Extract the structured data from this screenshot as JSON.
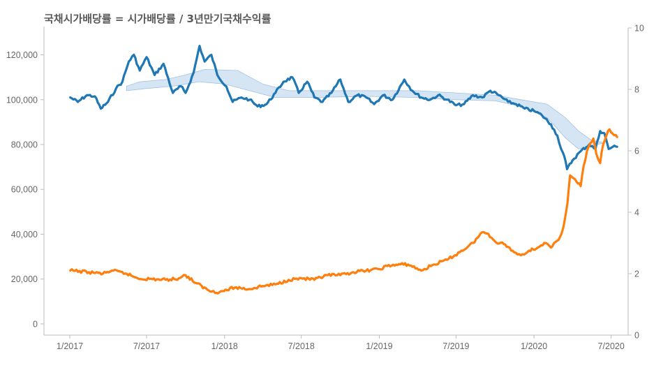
{
  "chart_data": {
    "type": "line",
    "title": "국채시가배당률 = 시가배당률 / 3년만기국채수익률",
    "xlabel": "",
    "ylabel": "",
    "grid": false,
    "legend": "none",
    "x_ticks": [
      "1/2017",
      "7/2017",
      "1/2018",
      "7/2018",
      "1/2019",
      "7/2019",
      "1/2020",
      "7/2020"
    ],
    "x_tick_dates": [
      "2017-01-01",
      "2017-07-01",
      "2018-01-01",
      "2018-07-01",
      "2019-01-01",
      "2019-07-01",
      "2020-01-01",
      "2020-07-01"
    ],
    "xlim": [
      "2016-11-01",
      "2020-08-10"
    ],
    "y_left": {
      "ylim": [
        -5000,
        132000
      ],
      "ticks": [
        0,
        20000,
        40000,
        60000,
        80000,
        100000,
        120000
      ],
      "tick_labels": [
        "0",
        "20,000",
        "40,000",
        "60,000",
        "80,000",
        "100,000",
        "120,000"
      ]
    },
    "y_right": {
      "ylim": [
        0,
        10
      ],
      "ticks": [
        0,
        2,
        4,
        6,
        8,
        10
      ],
      "tick_labels": [
        "0",
        "2",
        "4",
        "6",
        "8",
        "10"
      ]
    },
    "series": [
      {
        "axis": "left",
        "color": "#1f77b4",
        "points": [
          [
            "2017-01-02",
            101000
          ],
          [
            "2017-01-20",
            99000
          ],
          [
            "2017-02-10",
            102000
          ],
          [
            "2017-03-01",
            101500
          ],
          [
            "2017-03-15",
            96000
          ],
          [
            "2017-04-01",
            99000
          ],
          [
            "2017-04-20",
            105000
          ],
          [
            "2017-05-05",
            108000
          ],
          [
            "2017-05-20",
            117000
          ],
          [
            "2017-06-01",
            120000
          ],
          [
            "2017-06-15",
            113000
          ],
          [
            "2017-07-01",
            119000
          ],
          [
            "2017-07-20",
            111000
          ],
          [
            "2017-08-10",
            116000
          ],
          [
            "2017-09-01",
            103000
          ],
          [
            "2017-09-20",
            106000
          ],
          [
            "2017-10-01",
            103000
          ],
          [
            "2017-10-20",
            112000
          ],
          [
            "2017-11-03",
            124000
          ],
          [
            "2017-11-15",
            117000
          ],
          [
            "2017-12-01",
            120000
          ],
          [
            "2017-12-15",
            111000
          ],
          [
            "2018-01-05",
            106000
          ],
          [
            "2018-01-20",
            99000
          ],
          [
            "2018-02-10",
            101000
          ],
          [
            "2018-03-01",
            100000
          ],
          [
            "2018-03-20",
            97000
          ],
          [
            "2018-04-10",
            98000
          ],
          [
            "2018-05-01",
            103000
          ],
          [
            "2018-05-20",
            108000
          ],
          [
            "2018-06-10",
            110000
          ],
          [
            "2018-06-25",
            103000
          ],
          [
            "2018-07-15",
            108000
          ],
          [
            "2018-08-01",
            101000
          ],
          [
            "2018-08-20",
            99000
          ],
          [
            "2018-09-10",
            103000
          ],
          [
            "2018-10-01",
            109000
          ],
          [
            "2018-10-20",
            99000
          ],
          [
            "2018-11-10",
            102000
          ],
          [
            "2018-12-01",
            101000
          ],
          [
            "2018-12-20",
            98000
          ],
          [
            "2019-01-10",
            102000
          ],
          [
            "2019-02-01",
            100000
          ],
          [
            "2019-03-01",
            109000
          ],
          [
            "2019-03-20",
            104000
          ],
          [
            "2019-04-10",
            101000
          ],
          [
            "2019-05-01",
            100000
          ],
          [
            "2019-05-20",
            102000
          ],
          [
            "2019-06-10",
            100000
          ],
          [
            "2019-07-01",
            97500
          ],
          [
            "2019-07-20",
            98000
          ],
          [
            "2019-08-10",
            102000
          ],
          [
            "2019-09-01",
            101000
          ],
          [
            "2019-09-20",
            104000
          ],
          [
            "2019-10-10",
            102000
          ],
          [
            "2019-11-01",
            99000
          ],
          [
            "2019-11-20",
            98000
          ],
          [
            "2019-12-10",
            96000
          ],
          [
            "2020-01-01",
            95000
          ],
          [
            "2020-01-20",
            93000
          ],
          [
            "2020-02-10",
            89000
          ],
          [
            "2020-02-25",
            84000
          ],
          [
            "2020-03-05",
            78000
          ],
          [
            "2020-03-12",
            75000
          ],
          [
            "2020-03-19",
            69000
          ],
          [
            "2020-04-01",
            73000
          ],
          [
            "2020-04-20",
            77000
          ],
          [
            "2020-05-10",
            80000
          ],
          [
            "2020-05-25",
            78000
          ],
          [
            "2020-06-05",
            86000
          ],
          [
            "2020-06-15",
            85000
          ],
          [
            "2020-06-25",
            78000
          ],
          [
            "2020-07-05",
            79000
          ],
          [
            "2020-07-15",
            79000
          ]
        ]
      },
      {
        "axis": "right",
        "color": "#ff7f0e",
        "points": [
          [
            "2017-01-02",
            2.1
          ],
          [
            "2017-02-15",
            2.05
          ],
          [
            "2017-03-20",
            2.0
          ],
          [
            "2017-04-10",
            2.1
          ],
          [
            "2017-05-15",
            2.0
          ],
          [
            "2017-06-10",
            1.85
          ],
          [
            "2017-07-15",
            1.82
          ],
          [
            "2017-08-15",
            1.8
          ],
          [
            "2017-09-15",
            1.85
          ],
          [
            "2017-10-01",
            1.95
          ],
          [
            "2017-10-25",
            1.7
          ],
          [
            "2017-11-25",
            1.45
          ],
          [
            "2017-12-20",
            1.4
          ],
          [
            "2018-01-25",
            1.55
          ],
          [
            "2018-03-01",
            1.5
          ],
          [
            "2018-04-01",
            1.6
          ],
          [
            "2018-05-01",
            1.65
          ],
          [
            "2018-06-01",
            1.8
          ],
          [
            "2018-07-01",
            1.85
          ],
          [
            "2018-08-01",
            1.8
          ],
          [
            "2018-09-01",
            1.95
          ],
          [
            "2018-10-01",
            1.95
          ],
          [
            "2018-11-01",
            2.05
          ],
          [
            "2018-12-01",
            2.1
          ],
          [
            "2019-01-01",
            2.15
          ],
          [
            "2019-01-20",
            2.25
          ],
          [
            "2019-02-20",
            2.3
          ],
          [
            "2019-03-10",
            2.3
          ],
          [
            "2019-04-10",
            2.1
          ],
          [
            "2019-05-10",
            2.3
          ],
          [
            "2019-06-10",
            2.45
          ],
          [
            "2019-07-10",
            2.7
          ],
          [
            "2019-08-10",
            3.0
          ],
          [
            "2019-09-01",
            3.35
          ],
          [
            "2019-09-15",
            3.3
          ],
          [
            "2019-10-01",
            3.05
          ],
          [
            "2019-10-25",
            2.95
          ],
          [
            "2019-11-15",
            2.7
          ],
          [
            "2019-12-01",
            2.6
          ],
          [
            "2019-12-20",
            2.75
          ],
          [
            "2020-01-10",
            2.85
          ],
          [
            "2020-01-25",
            3.0
          ],
          [
            "2020-02-10",
            2.85
          ],
          [
            "2020-02-28",
            3.1
          ],
          [
            "2020-03-10",
            3.5
          ],
          [
            "2020-03-20",
            4.3
          ],
          [
            "2020-03-26",
            5.2
          ],
          [
            "2020-04-10",
            5.0
          ],
          [
            "2020-04-20",
            4.85
          ],
          [
            "2020-04-27",
            5.5
          ],
          [
            "2020-05-05",
            6.0
          ],
          [
            "2020-05-20",
            6.4
          ],
          [
            "2020-05-27",
            5.9
          ],
          [
            "2020-06-05",
            5.6
          ],
          [
            "2020-06-12",
            6.2
          ],
          [
            "2020-06-20",
            6.5
          ],
          [
            "2020-06-27",
            6.7
          ],
          [
            "2020-07-05",
            6.55
          ],
          [
            "2020-07-15",
            6.45
          ]
        ]
      }
    ],
    "band": {
      "axis": "left",
      "color": "#cfe0f1",
      "upper": [
        [
          "2017-05-15",
          106000
        ],
        [
          "2017-06-15",
          108000
        ],
        [
          "2017-08-15",
          109000
        ],
        [
          "2017-10-01",
          111000
        ],
        [
          "2017-11-15",
          113500
        ],
        [
          "2018-02-01",
          113000
        ],
        [
          "2018-04-01",
          107000
        ],
        [
          "2018-06-01",
          104000
        ],
        [
          "2018-09-01",
          104000
        ],
        [
          "2019-01-01",
          104000
        ],
        [
          "2019-04-01",
          104000
        ],
        [
          "2019-07-01",
          103000
        ],
        [
          "2019-10-01",
          102000
        ],
        [
          "2019-12-01",
          100000
        ],
        [
          "2020-02-01",
          98000
        ],
        [
          "2020-03-15",
          92000
        ],
        [
          "2020-04-15",
          86000
        ],
        [
          "2020-05-15",
          82000
        ],
        [
          "2020-06-10",
          81000
        ]
      ],
      "lower": [
        [
          "2017-05-15",
          104000
        ],
        [
          "2017-07-01",
          105000
        ],
        [
          "2017-09-01",
          106000
        ],
        [
          "2017-11-01",
          108000
        ],
        [
          "2018-01-01",
          107000
        ],
        [
          "2018-03-01",
          104000
        ],
        [
          "2018-05-01",
          101000
        ],
        [
          "2018-08-01",
          101000
        ],
        [
          "2018-12-01",
          101500
        ],
        [
          "2019-04-01",
          101000
        ],
        [
          "2019-07-01",
          100000
        ],
        [
          "2019-10-01",
          99500
        ],
        [
          "2019-12-01",
          97000
        ],
        [
          "2020-02-01",
          92000
        ],
        [
          "2020-03-15",
          83000
        ],
        [
          "2020-04-15",
          78000
        ],
        [
          "2020-05-15",
          79500
        ],
        [
          "2020-06-10",
          80500
        ]
      ]
    }
  }
}
